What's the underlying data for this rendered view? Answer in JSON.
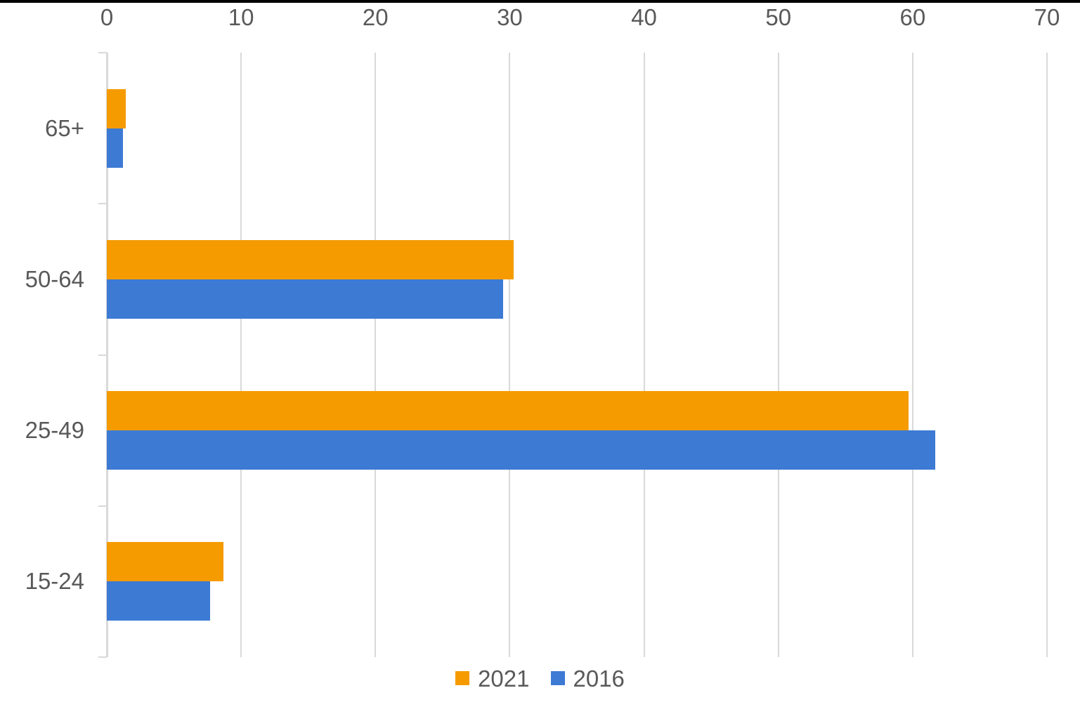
{
  "page": {
    "background_color": "#ffffff",
    "top_border_color": "#000000"
  },
  "chart_data": {
    "type": "bar",
    "orientation": "horizontal",
    "title": "",
    "xlabel": "",
    "ylabel": "",
    "categories": [
      "65+",
      "50-64",
      "25-49",
      "15-24"
    ],
    "series": [
      {
        "name": "2021",
        "color": "#f59b00",
        "values": [
          1.4,
          30.3,
          59.7,
          8.7
        ]
      },
      {
        "name": "2016",
        "color": "#3d7ad4",
        "values": [
          1.2,
          29.5,
          61.7,
          7.7
        ]
      }
    ],
    "value_axis": {
      "position": "top",
      "min": 0,
      "max": 70,
      "tick_interval": 10,
      "tick_labels": [
        "0",
        "10",
        "20",
        "30",
        "40",
        "50",
        "60",
        "70"
      ]
    },
    "grid": true,
    "gridline_color": "#d9d9d9",
    "axis_text_color": "#595959",
    "legend": {
      "position": "bottom",
      "items": [
        {
          "label": "2021",
          "color": "#f59b00"
        },
        {
          "label": "2016",
          "color": "#3d7ad4"
        }
      ]
    }
  }
}
